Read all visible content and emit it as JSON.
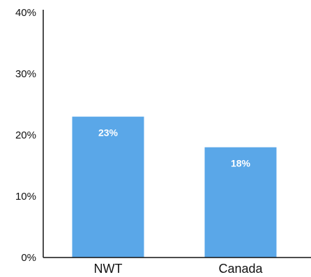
{
  "chart_data": {
    "type": "bar",
    "categories": [
      "NWT",
      "Canada"
    ],
    "values": [
      23,
      18
    ],
    "data_labels": [
      "23%",
      "18%"
    ],
    "ylim": [
      0,
      40
    ],
    "yticks": [
      0,
      10,
      20,
      30,
      40
    ],
    "ytick_labels": [
      "0%",
      "10%",
      "20%",
      "30%",
      "40%"
    ],
    "grid": false,
    "legend": "none",
    "bar_color": "#5aa7e8",
    "axis_color": "#111111",
    "data_label_color": "#ffffff"
  }
}
